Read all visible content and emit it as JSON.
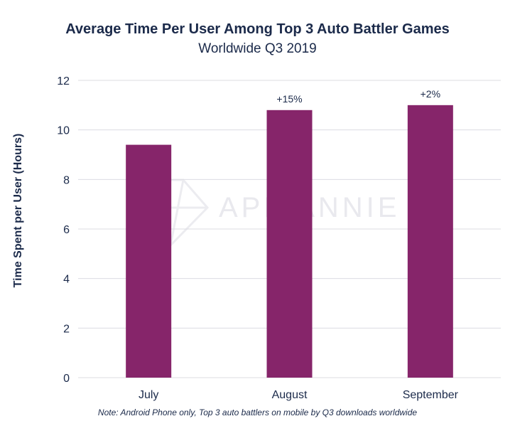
{
  "watermark": "APP ANNIE",
  "chart_data": {
    "type": "bar",
    "title": "Average Time Per User Among Top 3 Auto Battler Games",
    "subtitle": "Worldwide Q3 2019",
    "xlabel": "",
    "ylabel": "Time Spent per User (Hours)",
    "categories": [
      "July",
      "August",
      "September"
    ],
    "values": [
      9.4,
      10.8,
      11.0
    ],
    "data_labels": [
      "",
      "+15%",
      "+2%"
    ],
    "ylim": [
      0,
      12
    ],
    "yticks": [
      "0",
      "2",
      "4",
      "6",
      "8",
      "10",
      "12"
    ],
    "grid": true,
    "legend": "none",
    "bar_color": "#86256a",
    "note": "Note: Android Phone only, Top 3 auto battlers on mobile by Q3 downloads worldwide"
  }
}
